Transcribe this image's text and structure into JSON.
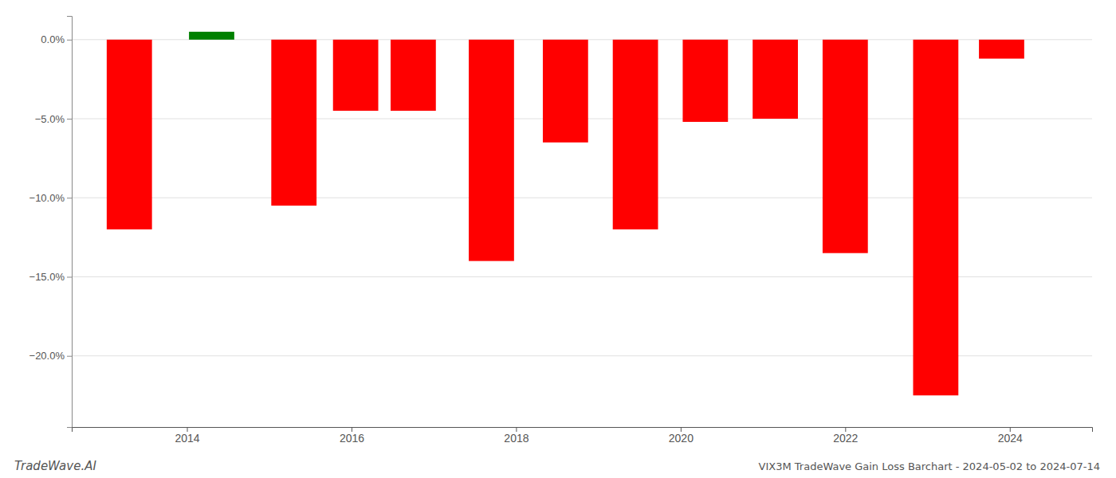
{
  "chart_data": {
    "type": "bar",
    "title": "VIX3M TradeWave Gain Loss Barchart - 2024-05-02 to 2024-07-14",
    "annotations": [
      "TradeWave.AI"
    ],
    "x": [
      2013.3,
      2014.3,
      2015.3,
      2016.05,
      2016.75,
      2017.7,
      2018.6,
      2019.45,
      2020.3,
      2021.15,
      2022.0,
      2023.1,
      2023.9
    ],
    "values": [
      -12.0,
      0.5,
      -10.5,
      -4.5,
      -4.5,
      -14.0,
      -6.5,
      -12.0,
      -5.2,
      -5.0,
      -13.5,
      -22.5,
      -1.2
    ],
    "colors": [
      "#ff0000",
      "#008000",
      "#ff0000",
      "#ff0000",
      "#ff0000",
      "#ff0000",
      "#ff0000",
      "#ff0000",
      "#ff0000",
      "#ff0000",
      "#ff0000",
      "#ff0000",
      "#ff0000"
    ],
    "xlim": [
      2012.6,
      2025.0
    ],
    "ylim": [
      -24.5,
      1.5
    ],
    "xticks": [
      2014,
      2016,
      2018,
      2020,
      2022,
      2024
    ],
    "yticks": [
      {
        "value": 0.0,
        "label": "0.0%"
      },
      {
        "value": -5.0,
        "label": "−5.0%"
      },
      {
        "value": -10.0,
        "label": "−10.0%"
      },
      {
        "value": -15.0,
        "label": "−15.0%"
      },
      {
        "value": -20.0,
        "label": "−20.0%"
      }
    ],
    "grid": true
  }
}
